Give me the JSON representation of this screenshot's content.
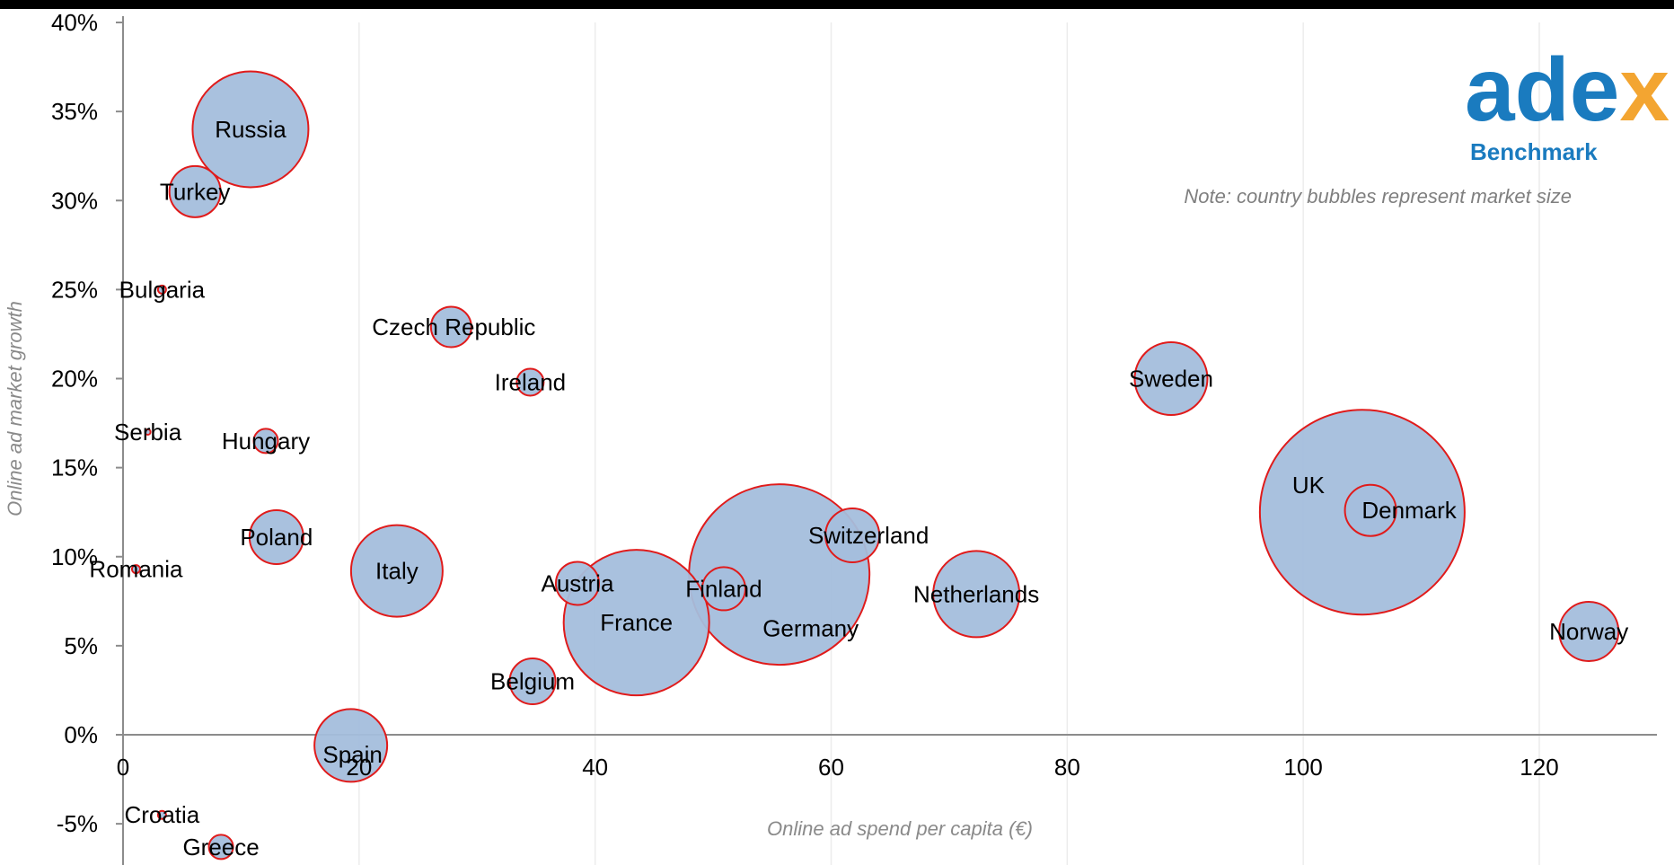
{
  "chart_data": {
    "type": "bubble",
    "xlabel": "Online ad spend per capita (€)",
    "ylabel": "Online ad market growth",
    "xlim": [
      0,
      130
    ],
    "ylim": [
      -7,
      40
    ],
    "x_ticks": [
      0,
      20,
      40,
      60,
      80,
      100,
      120
    ],
    "y_ticks": [
      -5,
      0,
      5,
      10,
      15,
      20,
      25,
      30,
      35,
      40
    ],
    "y_tick_labels": [
      "-5%",
      "0%",
      "5%",
      "10%",
      "15%",
      "20%",
      "25%",
      "30%",
      "35%",
      "40%"
    ],
    "grid": "vertical",
    "note": "Note: country bubbles represent market size",
    "bubble_fill": "#a4bedc",
    "bubble_stroke": "#e01b1b",
    "points": [
      {
        "label": "Russia",
        "x": 10.8,
        "y": 34,
        "size": 43
      },
      {
        "label": "Turkey",
        "x": 6.1,
        "y": 30.5,
        "size": 19
      },
      {
        "label": "Bulgaria",
        "x": 3.3,
        "y": 25,
        "size": 3
      },
      {
        "label": "Czech Republic",
        "x": 27.8,
        "y": 22.9,
        "size": 15
      },
      {
        "label": "Ireland",
        "x": 34.5,
        "y": 19.8,
        "size": 10
      },
      {
        "label": "Serbia",
        "x": 2.1,
        "y": 17,
        "size": 2
      },
      {
        "label": "Hungary",
        "x": 12.1,
        "y": 16.5,
        "size": 9
      },
      {
        "label": "Poland",
        "x": 13.0,
        "y": 11.1,
        "size": 20
      },
      {
        "label": "Romania",
        "x": 1.1,
        "y": 9.3,
        "size": 3
      },
      {
        "label": "Italy",
        "x": 23.2,
        "y": 9.2,
        "size": 34
      },
      {
        "label": "Austria",
        "x": 38.5,
        "y": 8.5,
        "size": 16
      },
      {
        "label": "France",
        "x": 43.5,
        "y": 6.3,
        "size": 54
      },
      {
        "label": "Finland",
        "x": 50.9,
        "y": 8.2,
        "size": 16
      },
      {
        "label": "Germany",
        "x": 55.6,
        "y": 9.0,
        "size": 67
      },
      {
        "label": "Switzerland",
        "x": 61.8,
        "y": 11.2,
        "size": 20
      },
      {
        "label": "Netherlands",
        "x": 72.3,
        "y": 7.9,
        "size": 32
      },
      {
        "label": "Belgium",
        "x": 34.7,
        "y": 3.0,
        "size": 17
      },
      {
        "label": "Spain",
        "x": 19.3,
        "y": -0.6,
        "size": 27
      },
      {
        "label": "Sweden",
        "x": 88.8,
        "y": 20.0,
        "size": 27
      },
      {
        "label": "UK",
        "x": 105.0,
        "y": 12.5,
        "size": 76
      },
      {
        "label": "Denmark",
        "x": 105.7,
        "y": 12.6,
        "size": 19
      },
      {
        "label": "Norway",
        "x": 124.2,
        "y": 5.8,
        "size": 22
      },
      {
        "label": "Croatia",
        "x": 3.3,
        "y": -4.5,
        "size": 3
      },
      {
        "label": "Greece",
        "x": 8.3,
        "y": -6.3,
        "size": 9
      }
    ]
  },
  "logo": {
    "main": "ade",
    "x": "x",
    "sub": "Benchmark"
  }
}
